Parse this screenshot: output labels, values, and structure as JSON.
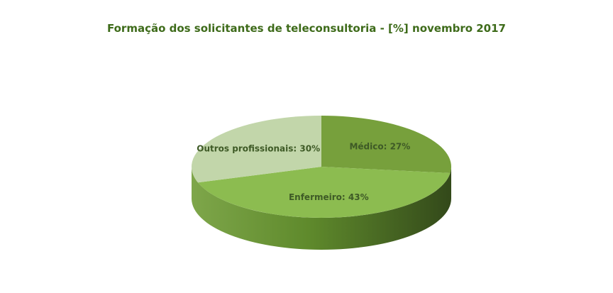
{
  "chart_data": {
    "type": "pie",
    "style": "3d",
    "title": "Formação dos solicitantes de teleconsultoria - [%]  novembro 2017",
    "categories": [
      "Médico",
      "Enfermeiro",
      "Outros profissionais"
    ],
    "values": [
      27,
      43,
      30
    ],
    "data_labels": [
      "Médico: 27%",
      "Enfermeiro: 43%",
      "Outros profissionais: 30%"
    ],
    "colors": [
      "#77a03c",
      "#8cbc50",
      "#c2d6aa"
    ],
    "legend": "none"
  }
}
